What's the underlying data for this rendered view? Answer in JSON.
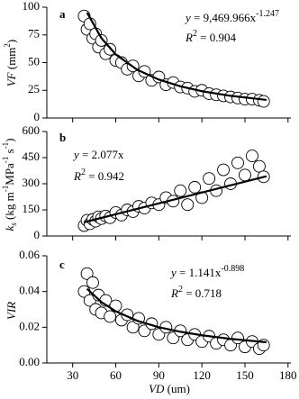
{
  "chart_data": [
    {
      "type": "scatter",
      "panel": "a",
      "equation": [
        "y",
        " = 9,469.966x",
        "-1.247"
      ],
      "r2": [
        "R",
        "2",
        " = 0.904"
      ],
      "ylabel": [
        "VF",
        " (mm",
        "2",
        ")"
      ],
      "x": [
        38,
        40,
        42,
        44,
        46,
        48,
        50,
        53,
        56,
        60,
        64,
        68,
        72,
        76,
        80,
        85,
        90,
        95,
        100,
        105,
        110,
        115,
        120,
        125,
        130,
        135,
        140,
        145,
        150,
        155,
        160,
        163
      ],
      "y": [
        92,
        80,
        85,
        72,
        76,
        64,
        70,
        58,
        62,
        52,
        50,
        44,
        47,
        38,
        42,
        34,
        37,
        30,
        32,
        28,
        27,
        24,
        25,
        22,
        21,
        20,
        19,
        18,
        17,
        17,
        16,
        15
      ],
      "fit_x": [
        40,
        50,
        60,
        75,
        90,
        105,
        120,
        140,
        165
      ],
      "fit_y": [
        95.2,
        72.1,
        57.4,
        43.5,
        34.7,
        28.6,
        24.2,
        20.0,
        16.3
      ],
      "xlim": [
        12,
        182
      ],
      "xticks": [
        30,
        60,
        90,
        120,
        150,
        180
      ],
      "ylim": [
        0,
        100
      ],
      "yticks": [
        0,
        25,
        50,
        75,
        100
      ]
    },
    {
      "type": "scatter",
      "panel": "b",
      "equation": [
        "y",
        " = 2.077x"
      ],
      "r2": [
        "R",
        "2",
        " = 0.942"
      ],
      "ylabel": [
        "k",
        "s",
        " (kg m",
        "-1",
        "MPa",
        "-1",
        " s",
        "-1",
        ")"
      ],
      "x": [
        38,
        40,
        42,
        44,
        46,
        48,
        50,
        53,
        56,
        60,
        64,
        68,
        72,
        76,
        80,
        85,
        90,
        95,
        100,
        105,
        110,
        115,
        120,
        125,
        130,
        135,
        140,
        145,
        150,
        155,
        160,
        163
      ],
      "y": [
        60,
        90,
        70,
        95,
        85,
        110,
        100,
        115,
        105,
        135,
        120,
        150,
        140,
        170,
        160,
        190,
        180,
        220,
        200,
        260,
        180,
        280,
        220,
        330,
        260,
        380,
        300,
        420,
        350,
        460,
        400,
        340
      ],
      "fit_x": [
        38,
        165
      ],
      "fit_y": [
        78.9,
        342.7
      ],
      "xlim": [
        12,
        182
      ],
      "xticks": [
        30,
        60,
        90,
        120,
        150,
        180
      ],
      "ylim": [
        0,
        600
      ],
      "yticks": [
        0,
        150,
        300,
        450,
        600
      ]
    },
    {
      "type": "scatter",
      "panel": "c",
      "equation": [
        "y",
        " = 1.141x",
        "-0.898"
      ],
      "r2": [
        "R",
        "2",
        " = 0.718"
      ],
      "ylabel": [
        "VIR"
      ],
      "xlabel": [
        "VD",
        " (um)"
      ],
      "x": [
        38,
        40,
        42,
        44,
        46,
        48,
        50,
        53,
        56,
        60,
        64,
        68,
        72,
        76,
        80,
        85,
        90,
        95,
        100,
        105,
        110,
        115,
        120,
        125,
        130,
        135,
        140,
        145,
        150,
        155,
        160,
        163
      ],
      "y": [
        0.04,
        0.05,
        0.035,
        0.045,
        0.03,
        0.038,
        0.028,
        0.035,
        0.026,
        0.032,
        0.024,
        0.027,
        0.02,
        0.025,
        0.018,
        0.022,
        0.016,
        0.02,
        0.014,
        0.018,
        0.013,
        0.016,
        0.012,
        0.015,
        0.011,
        0.013,
        0.01,
        0.014,
        0.009,
        0.012,
        0.008,
        0.01
      ],
      "fit_x": [
        40,
        50,
        60,
        75,
        90,
        105,
        120,
        140,
        165
      ],
      "fit_y": [
        0.0415,
        0.0341,
        0.0289,
        0.0236,
        0.02,
        0.0175,
        0.0155,
        0.0135,
        0.0116
      ],
      "xlim": [
        12,
        182
      ],
      "xticks": [
        30,
        60,
        90,
        120,
        150,
        180
      ],
      "ylim": [
        0,
        0.06
      ],
      "yticks": [
        {
          "value": 0,
          "label": "0.00"
        },
        {
          "value": 0.02,
          "label": "0.02"
        },
        {
          "value": 0.04,
          "label": "0.04"
        },
        {
          "value": 0.06,
          "label": "0.06"
        }
      ]
    }
  ]
}
